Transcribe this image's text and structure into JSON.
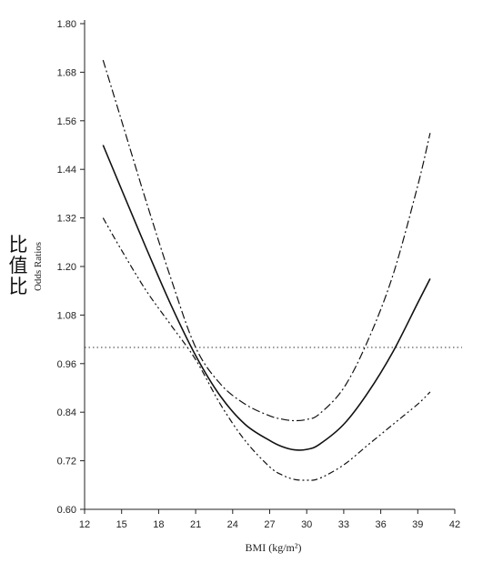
{
  "cjk_label": [
    "比",
    "值",
    "比"
  ],
  "chart_data": {
    "type": "line",
    "xlabel": "BMI (kg/m²)",
    "ylabel": "Odds Ratios",
    "xlim": [
      12,
      42
    ],
    "ylim": [
      0.6,
      1.8
    ],
    "xticks": [
      12,
      15,
      18,
      21,
      24,
      27,
      30,
      33,
      36,
      39,
      42
    ],
    "yticks": [
      "0.60",
      "0.72",
      "0.84",
      "0.96",
      "1.08",
      "1.20",
      "1.32",
      "1.44",
      "1.56",
      "1.68",
      "1.80"
    ],
    "reference_line": {
      "y": 1.0,
      "style": "dotted"
    },
    "series": [
      {
        "style": "solid",
        "x": [
          13.5,
          15,
          17,
          19,
          21,
          23,
          25,
          27,
          28,
          29,
          30,
          31,
          33,
          35,
          37,
          39,
          40
        ],
        "y": [
          1.5,
          1.39,
          1.245,
          1.105,
          0.98,
          0.88,
          0.81,
          0.77,
          0.755,
          0.747,
          0.748,
          0.76,
          0.81,
          0.89,
          0.99,
          1.11,
          1.17
        ]
      },
      {
        "style": "dash-dot",
        "x": [
          13.5,
          15,
          17,
          19,
          21,
          23,
          25,
          27,
          28,
          29,
          30,
          31,
          33,
          35,
          37,
          39,
          40
        ],
        "y": [
          1.71,
          1.56,
          1.36,
          1.17,
          1.0,
          0.91,
          0.86,
          0.831,
          0.823,
          0.819,
          0.822,
          0.835,
          0.9,
          1.02,
          1.18,
          1.4,
          1.53
        ]
      },
      {
        "style": "dash-dot-dot",
        "x": [
          13.5,
          15,
          17,
          19,
          21,
          23,
          25,
          27,
          28,
          29,
          30,
          31,
          33,
          35,
          37,
          39,
          40
        ],
        "y": [
          1.32,
          1.24,
          1.14,
          1.055,
          0.97,
          0.86,
          0.77,
          0.705,
          0.685,
          0.674,
          0.672,
          0.676,
          0.71,
          0.76,
          0.81,
          0.86,
          0.89
        ]
      }
    ]
  }
}
